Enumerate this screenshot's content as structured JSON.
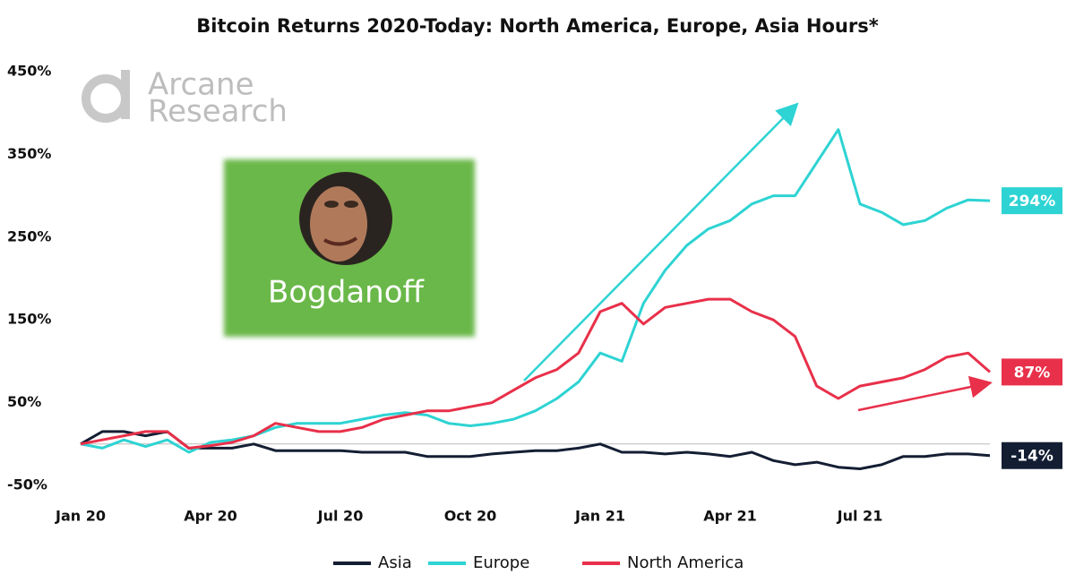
{
  "chart_data": {
    "type": "line",
    "title": "Bitcoin Returns 2020-Today: North America, Europe, Asia Hours*",
    "watermark": [
      "Arcane",
      "Research"
    ],
    "image_caption": "Bogdanoff",
    "categories": [
      "Jan 20",
      null,
      null,
      null,
      null,
      null,
      "Apr 20",
      null,
      null,
      null,
      null,
      null,
      "Jul 20",
      null,
      null,
      null,
      null,
      null,
      "Oct 20",
      null,
      null,
      null,
      null,
      null,
      "Jan 21",
      null,
      null,
      null,
      null,
      null,
      "Apr 21",
      null,
      null,
      null,
      null,
      null,
      "Jul 21",
      null,
      null,
      null,
      null,
      null,
      null
    ],
    "ylim": [
      -50,
      450
    ],
    "yticks": [
      {
        "value": -50,
        "label": "-50%"
      },
      {
        "value": 50,
        "label": "50%"
      },
      {
        "value": 150,
        "label": "150%"
      },
      {
        "value": 250,
        "label": "250%"
      },
      {
        "value": 350,
        "label": "350%"
      },
      {
        "value": 450,
        "label": "450%"
      }
    ],
    "grid": false,
    "legend": "bottom",
    "series": [
      {
        "name": "Asia",
        "color": "#141e33",
        "values": [
          0,
          15,
          15,
          10,
          15,
          -5,
          -5,
          -5,
          0,
          -8,
          -8,
          -8,
          -8,
          -10,
          -10,
          -10,
          -15,
          -15,
          -15,
          -12,
          -10,
          -8,
          -8,
          -5,
          0,
          -10,
          -10,
          -12,
          -10,
          -12,
          -15,
          -10,
          -20,
          -25,
          -22,
          -28,
          -30,
          -25,
          -15,
          -15,
          -12,
          -12,
          -14
        ],
        "value_labels": [
          null,
          null,
          null,
          null,
          null,
          null,
          null,
          null,
          null,
          null,
          null,
          null,
          null,
          null,
          null,
          null,
          null,
          null,
          null,
          null,
          null,
          null,
          null,
          null,
          null,
          null,
          null,
          null,
          null,
          null,
          null,
          null,
          null,
          null,
          null,
          null,
          null,
          null,
          null,
          null,
          null,
          null,
          "-14%"
        ]
      },
      {
        "name": "Europe",
        "color": "#2ed3d3",
        "values": [
          0,
          -5,
          5,
          -3,
          5,
          -10,
          2,
          5,
          10,
          20,
          25,
          25,
          25,
          30,
          35,
          38,
          35,
          25,
          22,
          25,
          30,
          40,
          55,
          75,
          110,
          100,
          170,
          210,
          240,
          260,
          270,
          290,
          300,
          300,
          340,
          380,
          290,
          280,
          265,
          270,
          285,
          295,
          294
        ],
        "value_labels": [
          null,
          null,
          null,
          null,
          null,
          null,
          null,
          null,
          null,
          null,
          null,
          null,
          null,
          null,
          null,
          null,
          null,
          null,
          null,
          null,
          null,
          null,
          null,
          null,
          null,
          null,
          null,
          null,
          null,
          null,
          null,
          null,
          null,
          null,
          null,
          null,
          null,
          null,
          null,
          null,
          null,
          null,
          "294%"
        ]
      },
      {
        "name": "North America",
        "color": "#e8304a",
        "values": [
          0,
          5,
          10,
          15,
          15,
          -5,
          -2,
          2,
          10,
          25,
          20,
          15,
          15,
          20,
          30,
          35,
          40,
          40,
          45,
          50,
          65,
          80,
          90,
          110,
          160,
          170,
          145,
          165,
          170,
          175,
          175,
          160,
          150,
          130,
          70,
          55,
          70,
          75,
          80,
          90,
          105,
          110,
          87
        ],
        "value_labels": [
          null,
          null,
          null,
          null,
          null,
          null,
          null,
          null,
          null,
          null,
          null,
          null,
          null,
          null,
          null,
          null,
          null,
          null,
          null,
          null,
          null,
          null,
          null,
          null,
          null,
          null,
          null,
          null,
          null,
          null,
          null,
          null,
          null,
          null,
          null,
          null,
          null,
          null,
          null,
          null,
          null,
          null,
          "87%"
        ]
      }
    ]
  }
}
